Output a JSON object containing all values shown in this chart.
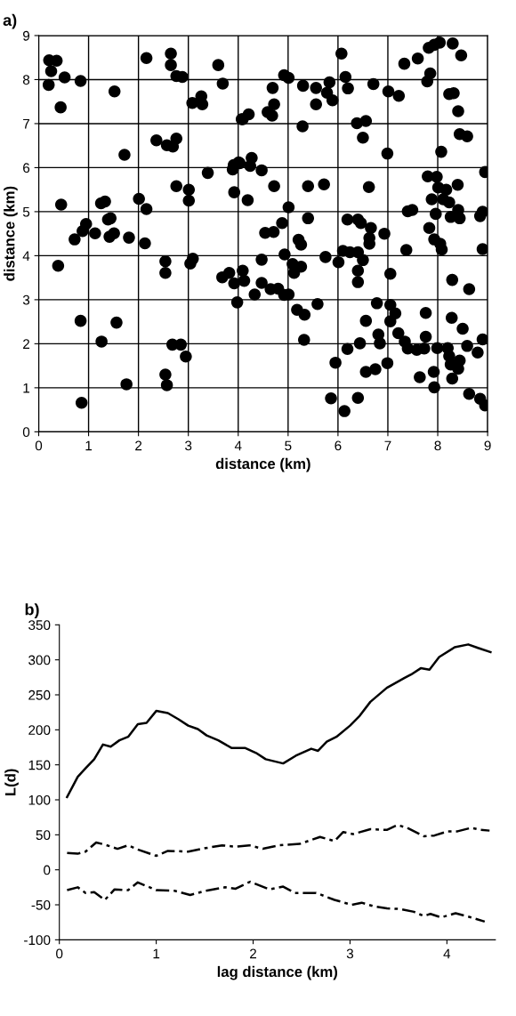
{
  "chart_data": [
    {
      "type": "scatter",
      "title": "a)",
      "xlabel": "distance (km)",
      "ylabel": "distance (km)",
      "xlim": [
        0,
        9
      ],
      "ylim": [
        0,
        9
      ],
      "xticks": [
        0,
        1,
        2,
        3,
        4,
        5,
        6,
        7,
        8,
        9
      ],
      "yticks": [
        0,
        1,
        2,
        3,
        4,
        5,
        6,
        7,
        8,
        9
      ],
      "grid": true,
      "marker": "circle",
      "series": [
        {
          "color": "#000000",
          "x": [
            0.21,
            0.36,
            0.25,
            0.52,
            0.84,
            0.2,
            0.44,
            1.52,
            1.72,
            2.16,
            2.65,
            2.65,
            2.76,
            2.88,
            3.08,
            3.26,
            3.28,
            3.6,
            3.69,
            2.36,
            2.57,
            2.69,
            2.76,
            3.39,
            3.89,
            4.01,
            4.07,
            3.92,
            2.76,
            3.01,
            3.01,
            2.01,
            1.25,
            1.33,
            0.45,
            6.07,
            4.92,
            5.01,
            4.69,
            5.3,
            5.56,
            5.83,
            6.15,
            6.2,
            5.78,
            5.89,
            5.56,
            4.72,
            4.59,
            4.68,
            4.21,
            4.09,
            5.29,
            6.71,
            7.01,
            7.22,
            6.38,
            6.56,
            6.5,
            6.99,
            7.33,
            7.6,
            7.82,
            7.93,
            8.04,
            8.3,
            8.47,
            7.85,
            7.79,
            8.23,
            8.32,
            8.41,
            8.44,
            8.59,
            8.07,
            3.91,
            4.03,
            4.27,
            4.24,
            4.47,
            4.72,
            5.4,
            5.72,
            6.62,
            7.8,
            7.98,
            8.01,
            8.17,
            8.4,
            8.11,
            8.23,
            7.88,
            8.95,
            4.19,
            5.01,
            7.4,
            7.49,
            2.16,
            0.95,
            0.88,
            0.72,
            1.13,
            1.39,
            1.44,
            1.42,
            1.51,
            1.81,
            2.13,
            0.39,
            2.54,
            2.54,
            3.04,
            3.09,
            3.68,
            3.82,
            3.92,
            3.98,
            0.84,
            1.56,
            1.26,
            2.68,
            2.85,
            2.95,
            2.54,
            2.57,
            1.76,
            0.86,
            5.4,
            4.88,
            4.54,
            4.71,
            5.21,
            5.26,
            4.93,
            4.47,
            5.09,
            5.26,
            5.12,
            5.75,
            6.19,
            6.4,
            6.46,
            6.66,
            6.63,
            6.63,
            6.93,
            6.1,
            6.24,
            6.4,
            6.5,
            6.01,
            6.4,
            6.4,
            7.05,
            7.37,
            7.83,
            7.93,
            8.05,
            8.08,
            7.96,
            8.26,
            8.41,
            8.44,
            8.29,
            8.63,
            4.09,
            4.12,
            4.47,
            4.65,
            4.8,
            4.92,
            5.01,
            4.33,
            5.18,
            5.33,
            5.59,
            6.78,
            7.05,
            7.15,
            7.05,
            6.56,
            7.76,
            8.28,
            8.5,
            7.21,
            7.34,
            7.4,
            7.58,
            7.76,
            7.73,
            7.99,
            8.2,
            8.23,
            8.44,
            8.59,
            8.26,
            8.41,
            8.29,
            7.92,
            7.64,
            7.93,
            6.81,
            6.84,
            6.44,
            6.19,
            5.95,
            6.56,
            6.75,
            6.99,
            5.32,
            5.86,
            6.4,
            6.13,
            8.63,
            8.9,
            8.85,
            8.9,
            8.9,
            8.8,
            8.85,
            8.95
          ],
          "values": [
            8.44,
            8.43,
            8.19,
            8.05,
            7.97,
            7.88,
            7.37,
            7.73,
            6.29,
            8.49,
            8.59,
            8.33,
            8.08,
            8.06,
            7.47,
            7.62,
            7.44,
            8.33,
            7.91,
            6.62,
            6.51,
            6.48,
            6.66,
            5.88,
            5.96,
            6.12,
            7.1,
            5.44,
            5.58,
            5.5,
            5.25,
            5.29,
            5.19,
            5.23,
            5.16,
            8.59,
            8.1,
            8.04,
            7.81,
            7.86,
            7.81,
            7.94,
            8.06,
            7.8,
            7.7,
            7.53,
            7.44,
            7.44,
            7.26,
            7.18,
            7.21,
            7.1,
            6.94,
            7.9,
            7.73,
            7.63,
            7.01,
            7.06,
            6.68,
            6.32,
            8.36,
            8.48,
            8.72,
            8.79,
            8.84,
            8.82,
            8.55,
            8.14,
            7.96,
            7.67,
            7.69,
            7.28,
            6.76,
            6.71,
            6.36,
            6.06,
            6.1,
            6.22,
            6.04,
            5.94,
            5.58,
            5.58,
            5.62,
            5.56,
            5.8,
            5.79,
            5.55,
            5.5,
            5.61,
            5.28,
            5.21,
            5.28,
            5.9,
            5.26,
            5.1,
            5.01,
            5.04,
            5.06,
            4.72,
            4.56,
            4.37,
            4.51,
            4.82,
            4.85,
            4.43,
            4.51,
            4.41,
            4.28,
            3.77,
            3.87,
            3.61,
            3.82,
            3.93,
            3.51,
            3.61,
            3.37,
            2.94,
            2.52,
            2.48,
            2.05,
            1.98,
            1.98,
            1.71,
            1.3,
            1.06,
            1.08,
            0.66,
            4.85,
            4.74,
            4.52,
            4.54,
            4.36,
            4.25,
            4.03,
            3.91,
            3.81,
            3.75,
            3.61,
            3.97,
            4.82,
            4.82,
            4.74,
            4.63,
            4.4,
            4.27,
            4.5,
            4.11,
            4.08,
            4.08,
            3.9,
            3.85,
            3.66,
            3.4,
            3.59,
            4.13,
            4.63,
            4.37,
            4.27,
            4.14,
            4.95,
            4.88,
            5.04,
            4.85,
            3.45,
            3.24,
            3.66,
            3.43,
            3.38,
            3.24,
            3.25,
            3.11,
            3.12,
            3.12,
            2.77,
            2.66,
            2.9,
            2.92,
            2.88,
            2.69,
            2.51,
            2.52,
            2.7,
            2.59,
            2.34,
            2.24,
            2.05,
            1.89,
            1.86,
            2.16,
            1.89,
            1.9,
            1.9,
            1.72,
            1.62,
            1.95,
            1.53,
            1.43,
            1.21,
            1.36,
            1.24,
            1.01,
            2.21,
            2.01,
            2.01,
            1.88,
            1.57,
            1.36,
            1.42,
            1.56,
            2.09,
            0.76,
            0.77,
            0.47,
            0.86,
            5.0,
            4.9,
            4.15,
            2.1,
            1.8,
            0.75,
            0.6
          ]
        }
      ]
    },
    {
      "type": "line",
      "title": "b)",
      "xlabel": "lag distance (km)",
      "ylabel": "L(d)",
      "xlim": [
        0,
        4.5
      ],
      "ylim": [
        -100,
        350
      ],
      "xticks": [
        0,
        1,
        2,
        3,
        4
      ],
      "yticks": [
        -100,
        -50,
        0,
        50,
        100,
        150,
        200,
        250,
        300,
        350
      ],
      "grid": false,
      "marker": "none",
      "series": [
        {
          "color": "#000000",
          "line_style": "solid",
          "x": [
            0.08,
            0.19,
            0.27,
            0.36,
            0.45,
            0.53,
            0.62,
            0.71,
            0.81,
            0.9,
            1.0,
            1.12,
            1.23,
            1.33,
            1.43,
            1.52,
            1.64,
            1.78,
            1.92,
            2.03,
            2.13,
            2.31,
            2.44,
            2.6,
            2.67,
            2.76,
            2.86,
            3.0,
            3.1,
            3.21,
            3.38,
            3.56,
            3.63,
            3.73,
            3.82,
            3.92,
            4.08,
            4.22,
            4.32,
            4.45
          ],
          "values": [
            104,
            133,
            145,
            158,
            179,
            176,
            185,
            190,
            208,
            210,
            227,
            224,
            215,
            206,
            201,
            192,
            185,
            174,
            174,
            167,
            158,
            152,
            163,
            173,
            170,
            183,
            190,
            206,
            220,
            240,
            260,
            274,
            279,
            288,
            286,
            304,
            318,
            322,
            317,
            311
          ]
        },
        {
          "color": "#000000",
          "line_style": "dashed",
          "x": [
            0.08,
            0.19,
            0.27,
            0.38,
            0.47,
            0.6,
            0.71,
            0.81,
            1.0,
            1.12,
            1.33,
            1.51,
            1.68,
            1.82,
            1.96,
            2.1,
            2.27,
            2.48,
            2.69,
            2.84,
            2.93,
            3.03,
            3.21,
            3.38,
            3.49,
            3.59,
            3.76,
            3.87,
            4.01,
            4.11,
            4.25,
            4.35,
            4.44
          ],
          "values": [
            24,
            23,
            26,
            39,
            36,
            30,
            35,
            29,
            20,
            27,
            26,
            31,
            35,
            33,
            35,
            30,
            35,
            37,
            47,
            41,
            54,
            51,
            58,
            57,
            64,
            60,
            48,
            49,
            55,
            55,
            60,
            57,
            56
          ]
        },
        {
          "color": "#000000",
          "line_style": "dashed",
          "x": [
            0.08,
            0.19,
            0.27,
            0.36,
            0.47,
            0.57,
            0.71,
            0.81,
            1.0,
            1.19,
            1.35,
            1.51,
            1.71,
            1.82,
            1.97,
            2.17,
            2.31,
            2.43,
            2.65,
            2.84,
            3.02,
            3.12,
            3.24,
            3.38,
            3.52,
            3.66,
            3.76,
            3.83,
            3.94,
            4.09,
            4.25,
            4.39
          ],
          "values": [
            -29,
            -25,
            -33,
            -32,
            -43,
            -28,
            -29,
            -18,
            -29,
            -30,
            -36,
            -30,
            -25,
            -27,
            -17,
            -28,
            -24,
            -33,
            -33,
            -43,
            -50,
            -47,
            -52,
            -55,
            -56,
            -60,
            -66,
            -63,
            -68,
            -62,
            -68,
            -74
          ]
        }
      ]
    }
  ]
}
